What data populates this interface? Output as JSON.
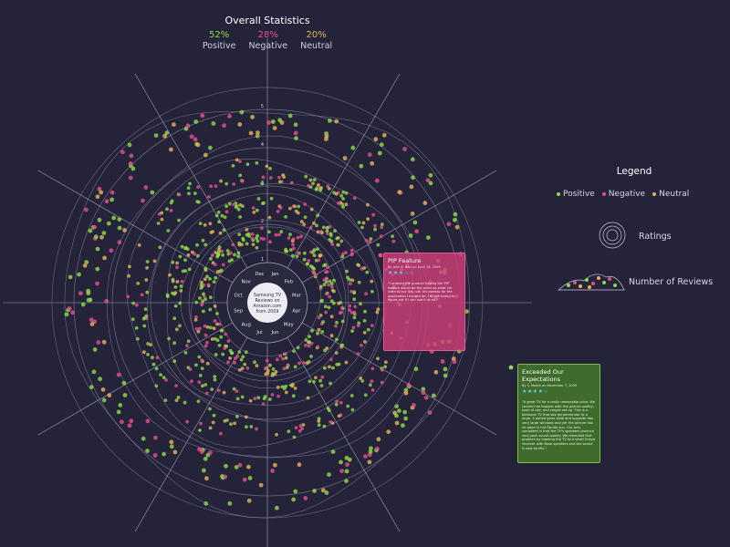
{
  "stats": {
    "title": "Overall Statistics",
    "items": [
      {
        "pct": "52%",
        "label": "Positive",
        "color": "#8ed84a"
      },
      {
        "pct": "28%",
        "label": "Negative",
        "color": "#e0508a"
      },
      {
        "pct": "20%",
        "label": "Neutral",
        "color": "#e3b25a"
      }
    ]
  },
  "legend": {
    "title": "Legend",
    "items": [
      {
        "label": "Positive",
        "color": "#8ed84a"
      },
      {
        "label": "Negative",
        "color": "#e0508a"
      },
      {
        "label": "Neutral",
        "color": "#e3b25a"
      }
    ],
    "ratings_label": "Ratings",
    "reviews_label": "Number of Reviews"
  },
  "center": {
    "lines": [
      "Samsung TV",
      "Reviews on",
      "Amazon.com",
      "from 2009"
    ]
  },
  "chart_data": {
    "type": "scatter",
    "subtype": "radial-sentiment",
    "months": [
      "Jan",
      "Feb",
      "Mar",
      "Apr",
      "May",
      "Jun",
      "Jul",
      "Aug",
      "Sep",
      "Oct",
      "Nov",
      "Dec"
    ],
    "rating_ticks": [
      "1",
      "2",
      "3",
      "4",
      "5"
    ],
    "series": [
      {
        "name": "Positive",
        "color": "#8ed84a"
      },
      {
        "name": "Negative",
        "color": "#e0508a"
      },
      {
        "name": "Neutral",
        "color": "#e3b25a"
      }
    ]
  },
  "reviews": [
    {
      "title": "PIP Feature",
      "byline": "By John B. Barr on April 18, 2009",
      "stars": "★★★☆☆",
      "text": "\"I ordered the product hoping the PIP feature would be the same as what I'm used to but it is not! It's useless for the application I bought for. I'm still trying to figure out if I can use it at all.\""
    },
    {
      "title": "Exceeded Our Expectations",
      "byline": "By S. Moore on November 7, 2009",
      "stars": "★★★★☆",
      "text": "\"A great TV for a really reasonable price. We couldn't be happier with the picture quality, ease of use, and simple set-up. This is a bedroom TV that sits perpendicular to a large, 3 paned glass slide and opposite two very large windows and yet the picture has no glare in full Florida sun. Our only complaint is that the TV's speakers produce very poor sound quality. We remedied that problem by hooking the TV to a small Onkyo receiver with Bose speakers and the sound is now terrific.\""
    }
  ]
}
